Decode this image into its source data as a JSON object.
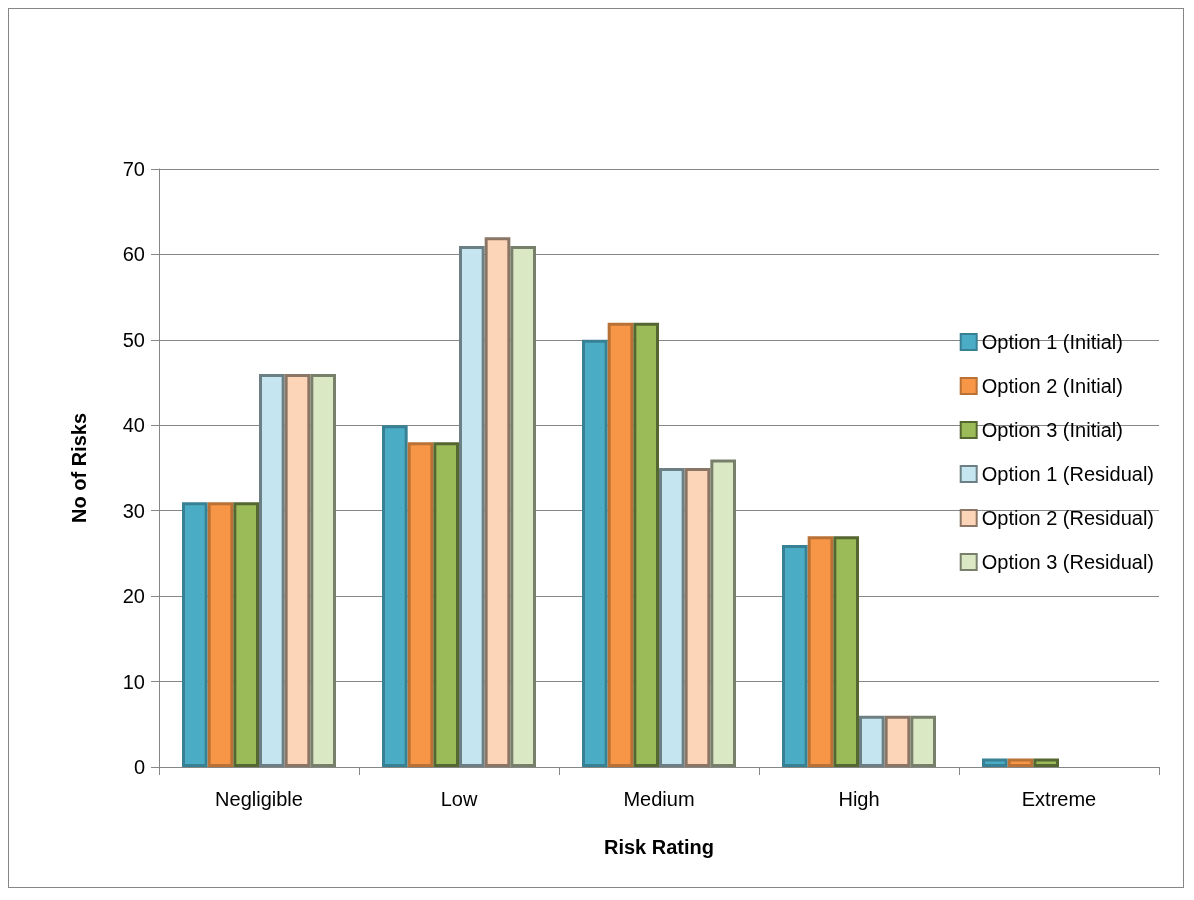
{
  "chart_data": {
    "type": "bar",
    "xlabel": "Risk Rating",
    "ylabel": "No of Risks",
    "categories": [
      "Negligible",
      "Low",
      "Medium",
      "High",
      "Extreme"
    ],
    "series": [
      {
        "name": "Option 1 (Initial)",
        "color": "#4bacc6",
        "values": [
          31,
          40,
          50,
          26,
          1
        ]
      },
      {
        "name": "Option 2 (Initial)",
        "color": "#f79646",
        "values": [
          31,
          38,
          52,
          27,
          1
        ]
      },
      {
        "name": "Option 3 (Initial)",
        "color": "#9bbb59",
        "values": [
          31,
          38,
          52,
          27,
          1
        ]
      },
      {
        "name": "Option 1 (Residual)",
        "color": "#c5e6f0",
        "values": [
          46,
          61,
          35,
          6,
          null
        ]
      },
      {
        "name": "Option 2 (Residual)",
        "color": "#fcd5b8",
        "values": [
          46,
          62,
          35,
          6,
          null
        ]
      },
      {
        "name": "Option 3 (Residual)",
        "color": "#dbe8c4",
        "values": [
          46,
          61,
          36,
          6,
          null
        ]
      }
    ],
    "ylim": [
      0,
      70
    ],
    "yticks": [
      0,
      10,
      20,
      30,
      40,
      50,
      60,
      70
    ],
    "grid": "y",
    "legend": "right"
  }
}
